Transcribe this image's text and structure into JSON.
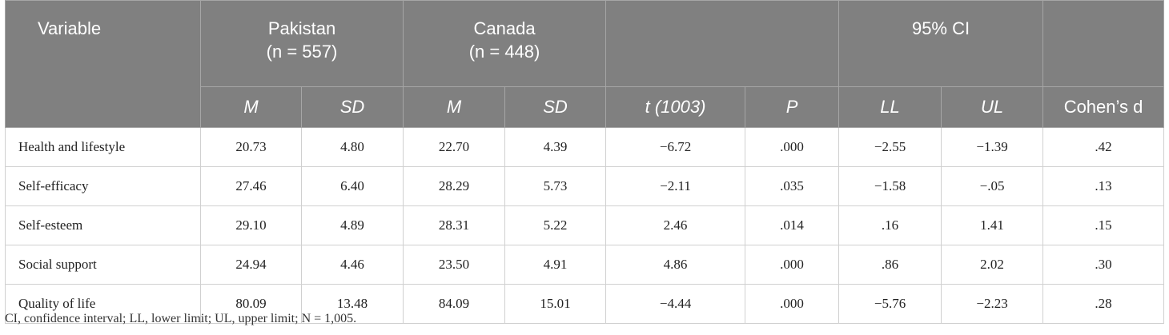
{
  "header": {
    "variable": "Variable",
    "groups": [
      {
        "name": "Pakistan",
        "n": "(n = 557)"
      },
      {
        "name": "Canada",
        "n": "(n = 448)"
      }
    ],
    "ci": "95% CI",
    "columns": [
      "M",
      "SD",
      "M",
      "SD",
      "t (1003)",
      "P",
      "LL",
      "UL",
      "Cohen’s d"
    ]
  },
  "table": {
    "rows": [
      [
        "Health and lifestyle",
        "20.73",
        "4.80",
        "22.70",
        "4.39",
        "−6.72",
        ".000",
        "−2.55",
        "−1.39",
        ".42"
      ],
      [
        "Self-efficacy",
        "27.46",
        "6.40",
        "28.29",
        "5.73",
        "−2.11",
        ".035",
        "−1.58",
        "−.05",
        ".13"
      ],
      [
        "Self-esteem",
        "29.10",
        "4.89",
        "28.31",
        "5.22",
        "2.46",
        ".014",
        ".16",
        "1.41",
        ".15"
      ],
      [
        "Social support",
        "24.94",
        "4.46",
        "23.50",
        "4.91",
        "4.86",
        ".000",
        ".86",
        "2.02",
        ".30"
      ],
      [
        "Quality of life",
        "80.09",
        "13.48",
        "84.09",
        "15.01",
        "−4.44",
        ".000",
        "−5.76",
        "−2.23",
        ".28"
      ]
    ]
  },
  "footnote": "CI, confidence interval; LL, lower limit; UL, upper limit; N = 1,005."
}
